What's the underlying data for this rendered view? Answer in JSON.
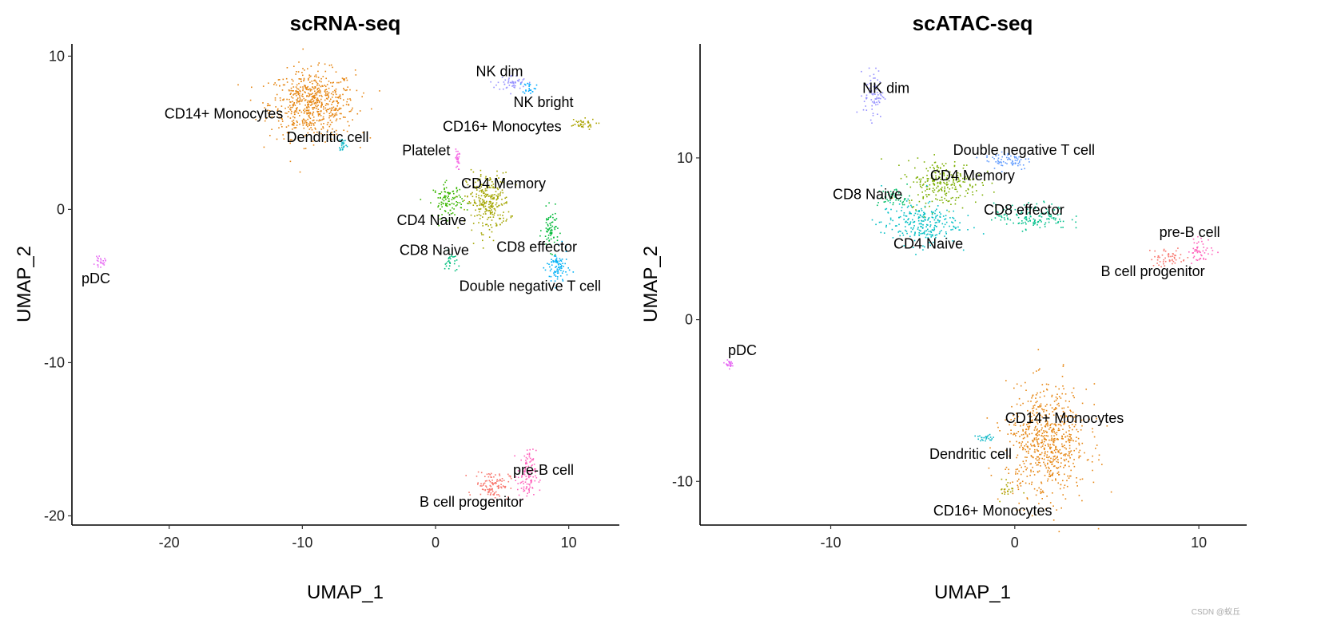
{
  "watermark": "CSDN @蚁丘",
  "chart_data": [
    {
      "type": "scatter",
      "title": "scRNA-seq",
      "xlabel": "UMAP_1",
      "ylabel": "UMAP_2",
      "xlim": [
        -27.3,
        13.8
      ],
      "ylim": [
        -20.6,
        10.8
      ],
      "xticks": [
        -20,
        -10,
        0,
        10
      ],
      "yticks": [
        -20,
        -10,
        0,
        10
      ],
      "grid": false,
      "legend": "none",
      "clusters": [
        {
          "name": "CD14+ Monocytes",
          "color": "#E68613",
          "center": [
            -9.3,
            6.9
          ],
          "spread": [
            3.2,
            2.2
          ],
          "label_at": [
            -15.9,
            6.25
          ]
        },
        {
          "name": "Dendritic cell",
          "color": "#0CB7C6",
          "center": [
            -7.0,
            4.3
          ],
          "spread": [
            0.3,
            0.5
          ],
          "label_at": [
            -8.1,
            4.7
          ]
        },
        {
          "name": "NK dim",
          "color": "#9590FF",
          "center": [
            5.7,
            8.3
          ],
          "spread": [
            1.1,
            0.5
          ],
          "label_at": [
            4.8,
            9.0
          ]
        },
        {
          "name": "NK bright",
          "color": "#00A9FF",
          "center": [
            7.0,
            8.0
          ],
          "spread": [
            0.5,
            0.4
          ],
          "label_at": [
            8.1,
            7.0
          ]
        },
        {
          "name": "CD16+ Monocytes",
          "color": "#ABA300",
          "center": [
            10.8,
            5.6
          ],
          "spread": [
            1.2,
            0.35
          ],
          "label_at": [
            5.0,
            5.4
          ]
        },
        {
          "name": "Platelet",
          "color": "#F564E3",
          "center": [
            1.6,
            3.3
          ],
          "spread": [
            0.15,
            0.7
          ],
          "label_at": [
            -0.7,
            3.85
          ]
        },
        {
          "name": "CD4 Memory",
          "color": "#A3A500",
          "center": [
            3.9,
            0.5
          ],
          "spread": [
            1.6,
            1.9
          ],
          "label_at": [
            5.1,
            1.7
          ]
        },
        {
          "name": "CD4 Naive",
          "color": "#39B600",
          "center": [
            0.9,
            0.6
          ],
          "spread": [
            1.1,
            1.1
          ],
          "label_at": [
            -0.3,
            -0.7
          ]
        },
        {
          "name": "CD8 Naive",
          "color": "#00BF7D",
          "center": [
            1.1,
            -3.4
          ],
          "spread": [
            0.45,
            0.7
          ],
          "label_at": [
            -0.1,
            -2.65
          ]
        },
        {
          "name": "CD8 effector",
          "color": "#00BA38",
          "center": [
            8.6,
            -1.3
          ],
          "spread": [
            0.6,
            1.3
          ],
          "label_at": [
            7.6,
            -2.45
          ]
        },
        {
          "name": "Double negative T cell",
          "color": "#00B0F6",
          "center": [
            9.1,
            -3.8
          ],
          "spread": [
            0.8,
            1.2
          ],
          "label_at": [
            7.1,
            -5.0
          ]
        },
        {
          "name": "pDC",
          "color": "#E76BF3",
          "center": [
            -25.2,
            -3.4
          ],
          "spread": [
            0.4,
            0.3
          ],
          "label_at": [
            -25.5,
            -4.5
          ]
        },
        {
          "name": "B cell progenitor",
          "color": "#F8766D",
          "center": [
            4.2,
            -17.9
          ],
          "spread": [
            1.3,
            0.9
          ],
          "label_at": [
            2.7,
            -19.1
          ]
        },
        {
          "name": "pre-B cell",
          "color": "#FF62BC",
          "center": [
            6.8,
            -17.4
          ],
          "spread": [
            0.7,
            1.7
          ],
          "label_at": [
            8.1,
            -17.0
          ]
        }
      ]
    },
    {
      "type": "scatter",
      "title": "scATAC-seq",
      "xlabel": "UMAP_1",
      "ylabel": "UMAP_2",
      "xlim": [
        -17.1,
        12.6
      ],
      "ylim": [
        -12.7,
        17.05
      ],
      "xticks": [
        -10,
        0,
        10
      ],
      "yticks": [
        -10,
        0,
        10
      ],
      "grid": false,
      "legend": "none",
      "clusters": [
        {
          "name": "NK dim",
          "color": "#9590FF",
          "center": [
            -7.7,
            14.0
          ],
          "spread": [
            0.55,
            1.5
          ],
          "label_at": [
            -7.0,
            14.3
          ]
        },
        {
          "name": "Double negative T cell",
          "color": "#619CFF",
          "center": [
            -0.4,
            9.9
          ],
          "spread": [
            1.3,
            0.6
          ],
          "label_at": [
            0.5,
            10.5
          ]
        },
        {
          "name": "CD4 Memory",
          "color": "#7CAE00",
          "center": [
            -3.9,
            8.5
          ],
          "spread": [
            2.0,
            1.4
          ],
          "label_at": [
            -2.3,
            8.9
          ]
        },
        {
          "name": "CD8 Naive",
          "color": "#00BE67",
          "center": [
            -6.6,
            7.6
          ],
          "spread": [
            0.9,
            0.6
          ],
          "label_at": [
            -8.0,
            7.75
          ]
        },
        {
          "name": "CD4 Naive",
          "color": "#00BFC4",
          "center": [
            -5.2,
            6.0
          ],
          "spread": [
            2.1,
            1.3
          ],
          "label_at": [
            -4.7,
            4.7
          ]
        },
        {
          "name": "CD8 effector",
          "color": "#00C08B",
          "center": [
            0.9,
            6.4
          ],
          "spread": [
            2.0,
            0.8
          ],
          "label_at": [
            0.5,
            6.8
          ]
        },
        {
          "name": "pre-B cell",
          "color": "#FF62BC",
          "center": [
            10.1,
            4.3
          ],
          "spread": [
            0.7,
            0.8
          ],
          "label_at": [
            9.5,
            5.4
          ]
        },
        {
          "name": "B cell progenitor",
          "color": "#F8766D",
          "center": [
            8.3,
            3.9
          ],
          "spread": [
            1.0,
            0.6
          ],
          "label_at": [
            7.5,
            3.0
          ]
        },
        {
          "name": "pDC",
          "color": "#E76BF3",
          "center": [
            -15.6,
            -2.7
          ],
          "spread": [
            0.2,
            0.2
          ],
          "label_at": [
            -14.8,
            -1.9
          ]
        },
        {
          "name": "CD14+ Monocytes",
          "color": "#E68613",
          "center": [
            1.7,
            -7.6
          ],
          "spread": [
            2.2,
            3.5
          ],
          "label_at": [
            2.7,
            -6.1
          ]
        },
        {
          "name": "Dendritic cell",
          "color": "#0CB7C6",
          "center": [
            -1.7,
            -7.3
          ],
          "spread": [
            0.6,
            0.2
          ],
          "label_at": [
            -2.4,
            -8.3
          ]
        },
        {
          "name": "CD16+ Monocytes",
          "color": "#ABA300",
          "center": [
            -0.4,
            -10.4
          ],
          "spread": [
            0.4,
            0.6
          ],
          "label_at": [
            -1.2,
            -11.8
          ]
        }
      ]
    }
  ]
}
